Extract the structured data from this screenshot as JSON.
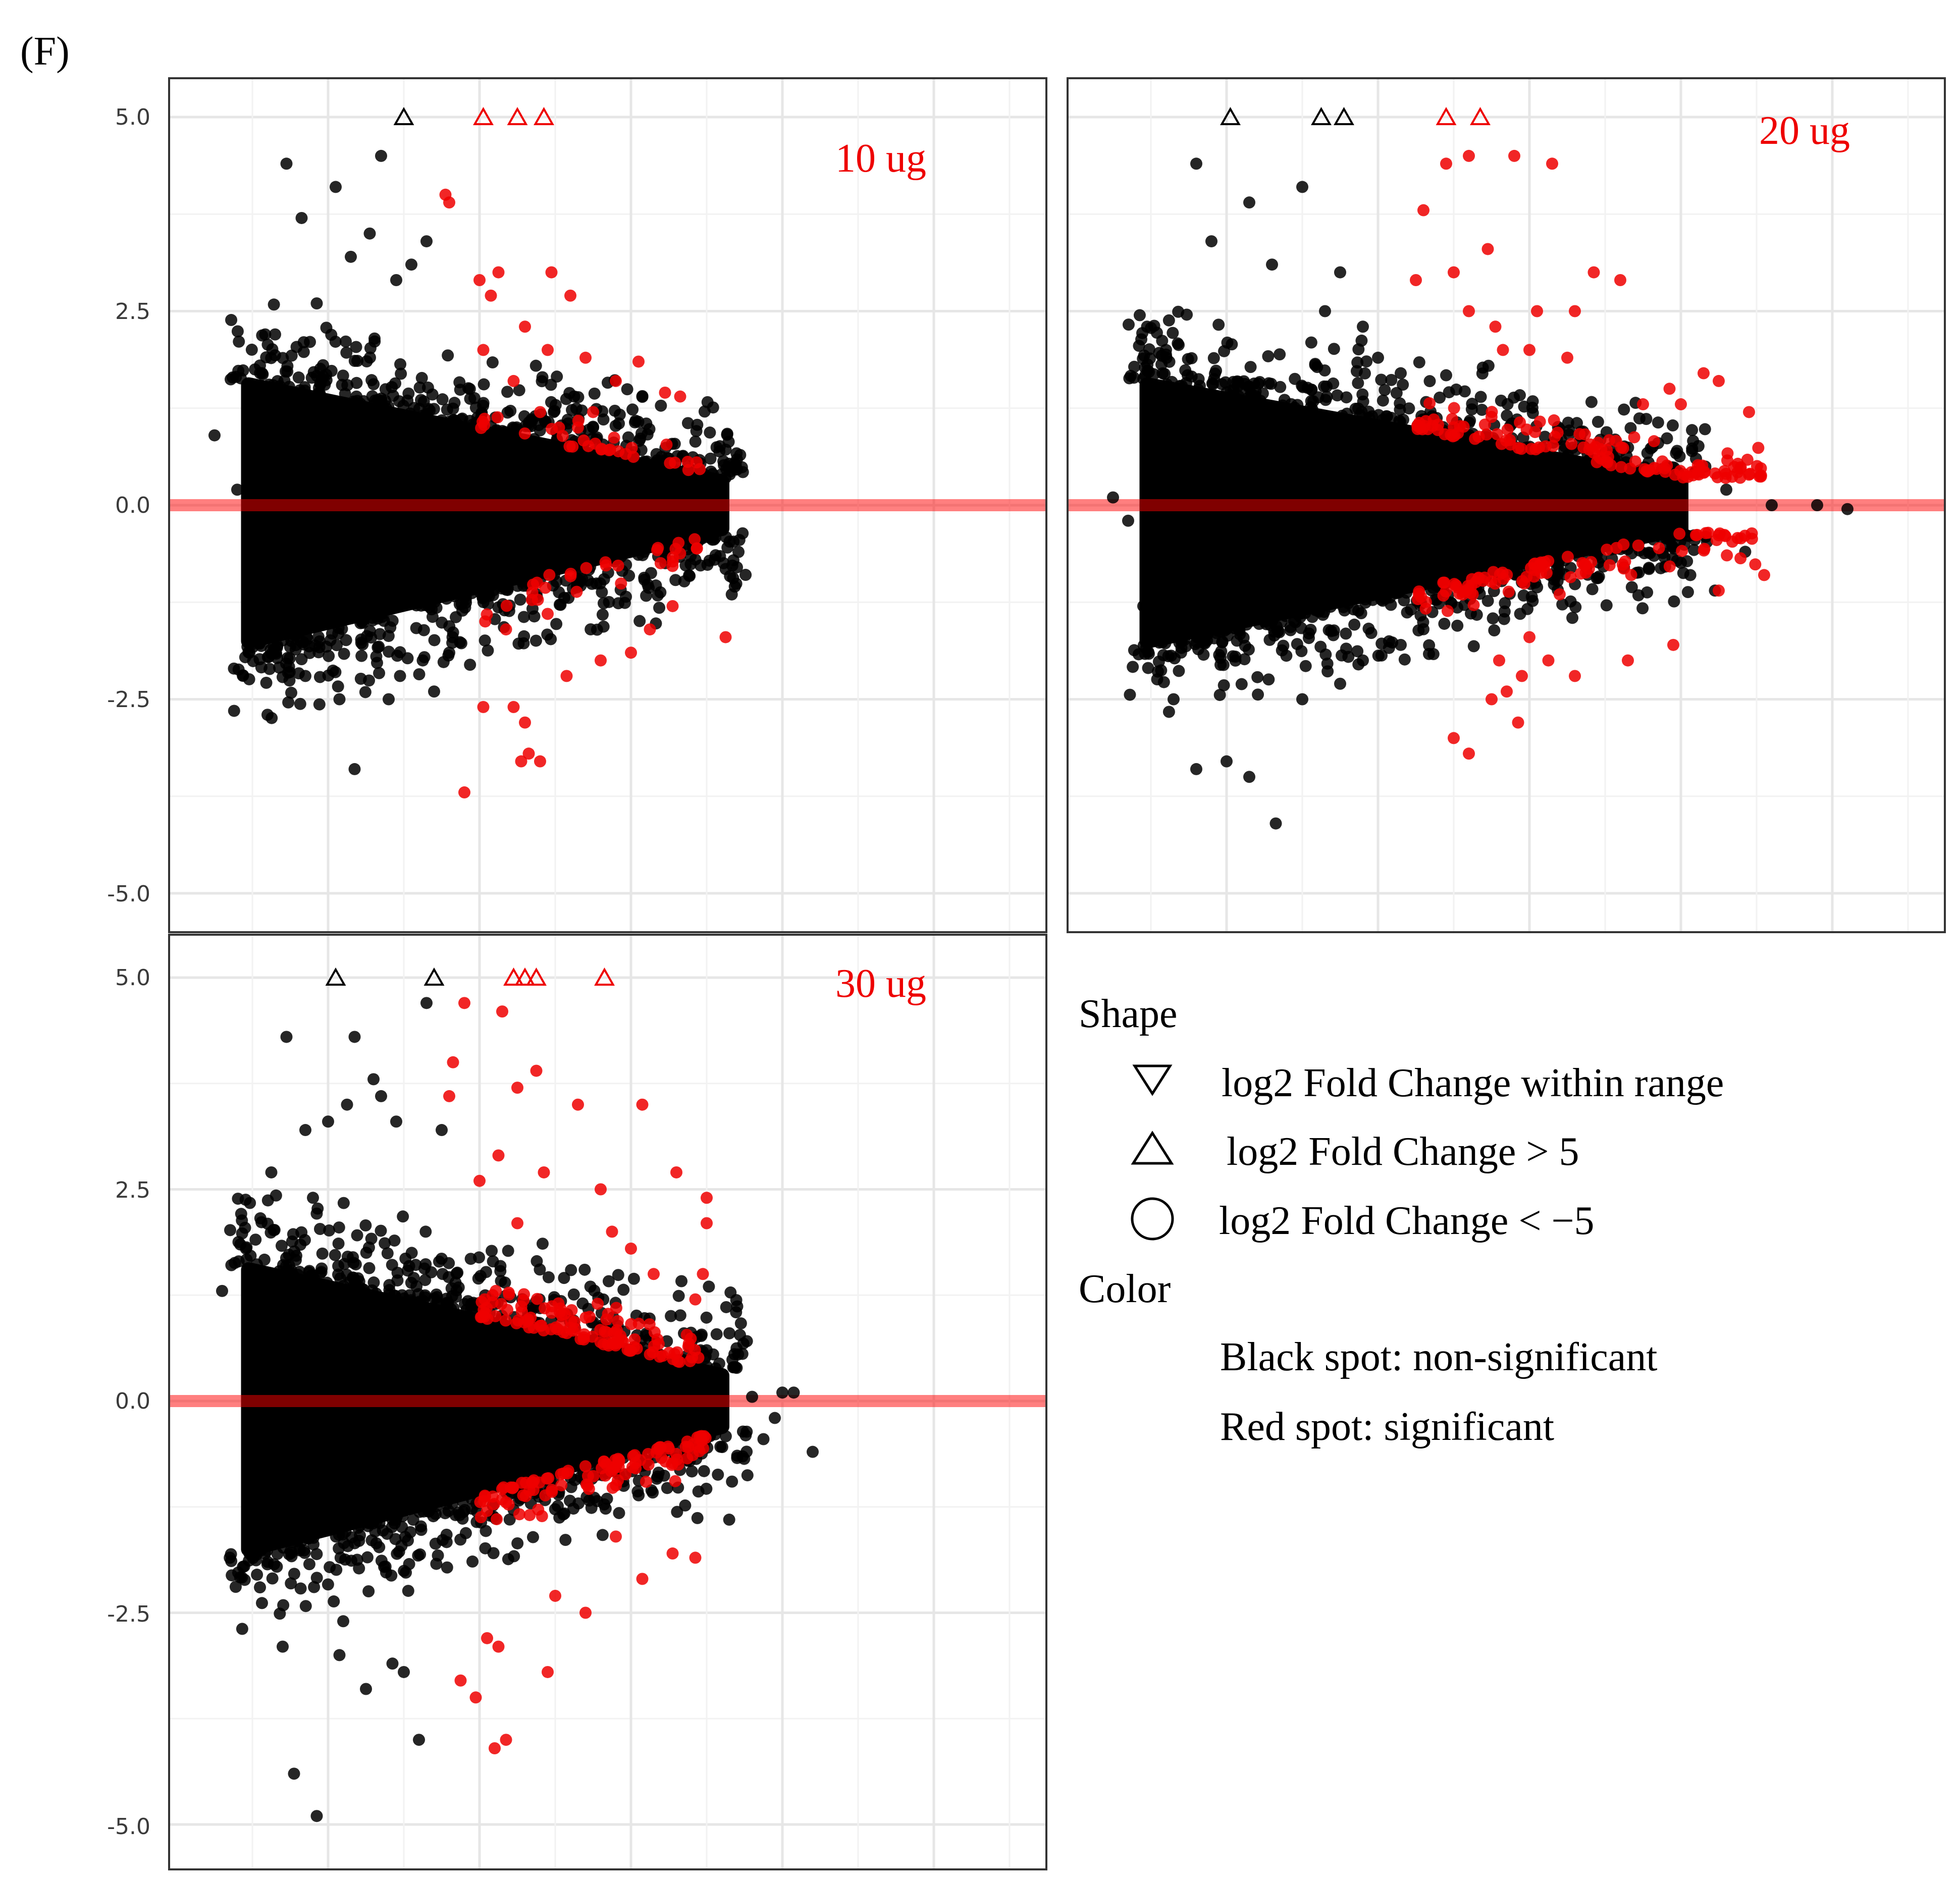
{
  "figure_label": "(F)",
  "chart_data": [
    {
      "type": "scatter",
      "title": "10 ug",
      "xlabel": "",
      "ylabel": "",
      "ylim": [
        -5.5,
        5.5
      ],
      "yticks": [
        5.0,
        2.5,
        0.0,
        -2.5,
        -5.0
      ],
      "ytick_labels": [
        "5.0",
        "2.5",
        "0.0",
        "-2.5",
        "-5.0"
      ],
      "reference_line": 0,
      "series": [
        {
          "name": "non-significant",
          "color": "#000000",
          "points": [
            [
              -1.5,
              0.9
            ],
            [
              -1.2,
              0.2
            ],
            [
              -1.05,
              -0.8
            ],
            [
              -0.8,
              -2.7
            ],
            [
              -0.55,
              4.4
            ],
            [
              -0.35,
              3.7
            ],
            [
              -0.15,
              2.6
            ],
            [
              0.1,
              4.1
            ],
            [
              0.3,
              3.2
            ],
            [
              0.35,
              -3.4
            ],
            [
              0.55,
              3.5
            ],
            [
              0.7,
              4.5
            ],
            [
              0.9,
              2.9
            ],
            [
              1.1,
              3.1
            ],
            [
              1.3,
              3.4
            ],
            [
              1.4,
              -2.4
            ],
            [
              -0.9,
              1.8
            ],
            [
              -0.7,
              2.2
            ],
            [
              -0.3,
              -2.2
            ],
            [
              0.15,
              -2.5
            ],
            [
              0.8,
              -2.5
            ],
            [
              0.95,
              -2.2
            ],
            [
              1.25,
              -2.0
            ],
            [
              1.6,
              -1.9
            ],
            [
              3.5,
              1.0
            ],
            [
              4.1,
              0.4
            ],
            [
              4.6,
              0.3
            ],
            [
              5.05,
              0.6
            ],
            [
              4.85,
              -0.7
            ],
            [
              5.4,
              -0.8
            ],
            [
              4.45,
              -0.6
            ],
            [
              3.9,
              -0.5
            ]
          ]
        },
        {
          "name": "significant",
          "color": "#ee0000",
          "points": [
            [
              1.55,
              4.0
            ],
            [
              1.6,
              3.9
            ],
            [
              2.0,
              2.9
            ],
            [
              2.25,
              3.0
            ],
            [
              2.15,
              2.7
            ],
            [
              2.6,
              2.3
            ],
            [
              2.95,
              3.0
            ],
            [
              3.2,
              2.7
            ],
            [
              2.9,
              2.0
            ],
            [
              3.05,
              1.0
            ],
            [
              3.4,
              1.9
            ],
            [
              3.5,
              1.2
            ],
            [
              3.8,
              1.6
            ],
            [
              4.1,
              1.85
            ],
            [
              4.45,
              1.45
            ],
            [
              4.65,
              1.4
            ],
            [
              2.05,
              2.0
            ],
            [
              2.45,
              1.6
            ],
            [
              2.8,
              1.2
            ],
            [
              3.3,
              1.0
            ],
            [
              2.05,
              -2.6
            ],
            [
              2.45,
              -2.6
            ],
            [
              2.6,
              -2.8
            ],
            [
              2.55,
              -3.3
            ],
            [
              2.65,
              -3.2
            ],
            [
              2.8,
              -3.3
            ],
            [
              1.8,
              -3.7
            ],
            [
              3.15,
              -2.2
            ],
            [
              3.6,
              -2.0
            ],
            [
              4.0,
              -1.9
            ],
            [
              4.25,
              -1.6
            ],
            [
              4.55,
              -1.3
            ],
            [
              5.25,
              -1.7
            ],
            [
              2.9,
              -1.4
            ],
            [
              2.35,
              -1.6
            ]
          ]
        }
      ],
      "out_of_range": [
        {
          "x": 1.0,
          "y": 5.0,
          "shape": "triangle-up",
          "color": "#000000"
        },
        {
          "x": 2.05,
          "y": 5.0,
          "shape": "triangle-up",
          "color": "#ee0000"
        },
        {
          "x": 2.5,
          "y": 5.0,
          "shape": "triangle-up",
          "color": "#ee0000"
        },
        {
          "x": 2.85,
          "y": 5.0,
          "shape": "triangle-up",
          "color": "#ee0000"
        }
      ]
    },
    {
      "type": "scatter",
      "title": "20 ug",
      "xlabel": "",
      "ylabel": "",
      "ylim": [
        -5.5,
        5.5
      ],
      "reference_line": 0,
      "series": [
        {
          "name": "non-significant",
          "color": "#000000",
          "points": [
            [
              -1.05,
              2.3
            ],
            [
              -0.8,
              2.0
            ],
            [
              -0.4,
              4.4
            ],
            [
              -0.2,
              3.4
            ],
            [
              0.3,
              3.9
            ],
            [
              1.0,
              4.1
            ],
            [
              0.6,
              3.1
            ],
            [
              1.3,
              2.5
            ],
            [
              1.5,
              3.0
            ],
            [
              1.8,
              2.3
            ],
            [
              2.0,
              1.9
            ],
            [
              2.3,
              1.7
            ],
            [
              -1.5,
              0.1
            ],
            [
              -1.3,
              -0.2
            ],
            [
              -1.1,
              -1.3
            ],
            [
              -0.7,
              -2.5
            ],
            [
              -0.4,
              -3.4
            ],
            [
              0.0,
              -3.3
            ],
            [
              0.3,
              -3.5
            ],
            [
              0.65,
              -4.1
            ],
            [
              1.0,
              -2.5
            ],
            [
              1.5,
              -2.3
            ],
            [
              1.8,
              -2.0
            ],
            [
              2.3,
              -1.8
            ],
            [
              5.7,
              0.8
            ],
            [
              5.95,
              0.7
            ],
            [
              6.2,
              0.6
            ],
            [
              6.6,
              0.2
            ],
            [
              6.85,
              -0.6
            ],
            [
              6.45,
              -1.1
            ],
            [
              7.2,
              0.0
            ],
            [
              7.8,
              0.0
            ],
            [
              8.2,
              -0.05
            ],
            [
              5.5,
              -0.4
            ]
          ]
        },
        {
          "name": "significant",
          "color": "#ee0000",
          "points": [
            [
              2.6,
              3.8
            ],
            [
              2.9,
              4.4
            ],
            [
              3.2,
              4.5
            ],
            [
              3.8,
              4.5
            ],
            [
              4.3,
              4.4
            ],
            [
              2.5,
              2.9
            ],
            [
              3.0,
              3.0
            ],
            [
              3.45,
              3.3
            ],
            [
              3.2,
              2.5
            ],
            [
              3.55,
              2.3
            ],
            [
              4.0,
              2.0
            ],
            [
              4.5,
              1.9
            ],
            [
              4.85,
              3.0
            ],
            [
              5.2,
              2.9
            ],
            [
              4.1,
              2.5
            ],
            [
              3.65,
              2.0
            ],
            [
              4.6,
              2.5
            ],
            [
              5.5,
              1.3
            ],
            [
              5.85,
              1.5
            ],
            [
              6.0,
              1.3
            ],
            [
              6.3,
              1.7
            ],
            [
              6.5,
              1.6
            ],
            [
              6.9,
              1.2
            ],
            [
              3.0,
              -3.0
            ],
            [
              3.2,
              -3.2
            ],
            [
              3.5,
              -2.5
            ],
            [
              3.7,
              -2.4
            ],
            [
              3.9,
              -2.2
            ],
            [
              3.85,
              -2.8
            ],
            [
              4.25,
              -2.0
            ],
            [
              4.6,
              -2.2
            ],
            [
              5.3,
              -2.0
            ],
            [
              5.9,
              -1.8
            ],
            [
              6.5,
              -1.1
            ],
            [
              7.1,
              -0.9
            ],
            [
              4.0,
              -1.7
            ],
            [
              3.6,
              -2.0
            ]
          ]
        }
      ],
      "out_of_range": [
        {
          "x": 0.05,
          "y": 5.0,
          "shape": "triangle-up",
          "color": "#000000"
        },
        {
          "x": 1.25,
          "y": 5.0,
          "shape": "triangle-up",
          "color": "#000000"
        },
        {
          "x": 1.55,
          "y": 5.0,
          "shape": "triangle-up",
          "color": "#000000"
        },
        {
          "x": 2.9,
          "y": 5.0,
          "shape": "triangle-up",
          "color": "#ee0000"
        },
        {
          "x": 3.35,
          "y": 5.0,
          "shape": "triangle-up",
          "color": "#ee0000"
        }
      ]
    },
    {
      "type": "scatter",
      "title": "30 ug",
      "xlabel": "",
      "ylabel": "",
      "ylim": [
        -5.5,
        5.5
      ],
      "yticks": [
        5.0,
        2.5,
        0.0,
        -2.5,
        -5.0
      ],
      "ytick_labels": [
        "5.0",
        "2.5",
        "0.0",
        "-2.5",
        "-5.0"
      ],
      "reference_line": 0,
      "series": [
        {
          "name": "non-significant",
          "color": "#000000",
          "points": [
            [
              -1.4,
              1.3
            ],
            [
              -1.0,
              -1.0
            ],
            [
              -0.9,
              -2.2
            ],
            [
              -0.75,
              2.7
            ],
            [
              -0.55,
              4.3
            ],
            [
              -0.3,
              3.2
            ],
            [
              -0.2,
              2.4
            ],
            [
              0.0,
              3.3
            ],
            [
              0.25,
              3.5
            ],
            [
              0.35,
              4.3
            ],
            [
              0.6,
              3.8
            ],
            [
              0.7,
              3.6
            ],
            [
              0.9,
              3.3
            ],
            [
              1.3,
              4.7
            ],
            [
              1.5,
              3.2
            ],
            [
              -0.45,
              -4.4
            ],
            [
              -0.15,
              -4.9
            ],
            [
              0.15,
              -3.0
            ],
            [
              0.5,
              -3.4
            ],
            [
              0.85,
              -3.1
            ],
            [
              1.2,
              -4.0
            ],
            [
              1.0,
              -3.2
            ],
            [
              0.2,
              -2.6
            ],
            [
              -0.6,
              -2.9
            ],
            [
              4.7,
              0.8
            ],
            [
              5.0,
              0.6
            ],
            [
              5.3,
              0.8
            ],
            [
              5.6,
              0.05
            ],
            [
              6.0,
              0.1
            ],
            [
              6.4,
              -0.6
            ],
            [
              5.75,
              -0.45
            ],
            [
              5.9,
              -0.2
            ],
            [
              4.6,
              -0.4
            ],
            [
              6.15,
              0.1
            ]
          ]
        },
        {
          "name": "significant",
          "color": "#ee0000",
          "points": [
            [
              1.8,
              4.7
            ],
            [
              2.3,
              4.6
            ],
            [
              1.65,
              4.0
            ],
            [
              1.6,
              3.6
            ],
            [
              2.5,
              3.7
            ],
            [
              2.75,
              3.9
            ],
            [
              3.3,
              3.5
            ],
            [
              4.15,
              3.5
            ],
            [
              2.0,
              2.6
            ],
            [
              2.25,
              2.9
            ],
            [
              2.85,
              2.7
            ],
            [
              3.6,
              2.5
            ],
            [
              4.6,
              2.7
            ],
            [
              3.75,
              2.0
            ],
            [
              4.0,
              1.8
            ],
            [
              4.3,
              1.5
            ],
            [
              5.0,
              2.4
            ],
            [
              5.0,
              2.1
            ],
            [
              4.95,
              1.5
            ],
            [
              4.85,
              1.2
            ],
            [
              2.5,
              2.1
            ],
            [
              1.75,
              -3.3
            ],
            [
              1.95,
              -3.5
            ],
            [
              2.2,
              -4.1
            ],
            [
              2.35,
              -4.0
            ],
            [
              2.1,
              -2.8
            ],
            [
              2.25,
              -2.9
            ],
            [
              2.9,
              -3.2
            ],
            [
              3.0,
              -2.3
            ],
            [
              3.4,
              -2.5
            ],
            [
              4.15,
              -2.1
            ],
            [
              4.55,
              -1.8
            ],
            [
              4.85,
              -1.85
            ],
            [
              3.8,
              -1.6
            ]
          ]
        }
      ],
      "out_of_range": [
        {
          "x": 0.1,
          "y": 5.0,
          "shape": "triangle-up",
          "color": "#000000"
        },
        {
          "x": 1.4,
          "y": 5.0,
          "shape": "triangle-up",
          "color": "#000000"
        },
        {
          "x": 2.45,
          "y": 5.0,
          "shape": "triangle-up",
          "color": "#ee0000"
        },
        {
          "x": 2.6,
          "y": 5.0,
          "shape": "triangle-up",
          "color": "#ee0000"
        },
        {
          "x": 2.75,
          "y": 5.0,
          "shape": "triangle-up",
          "color": "#ee0000"
        },
        {
          "x": 3.65,
          "y": 5.0,
          "shape": "triangle-up",
          "color": "#ee0000"
        }
      ]
    }
  ],
  "legend": {
    "shape_title": "Shape",
    "items": [
      {
        "symbol": "triangle-down-icon",
        "label": "log2 Fold Change within range"
      },
      {
        "symbol": "triangle-up-icon",
        "label": "log2 Fold Change > 5"
      },
      {
        "symbol": "circle-icon",
        "label": "log2 Fold Change < −5"
      }
    ],
    "color_title": "Color",
    "color_items": [
      {
        "label": "Black spot: non-significant"
      },
      {
        "label": "Red spot: significant"
      }
    ]
  },
  "colors": {
    "non_significant": "#000000",
    "significant": "#ee0000",
    "reference_line": "#ff0000"
  }
}
